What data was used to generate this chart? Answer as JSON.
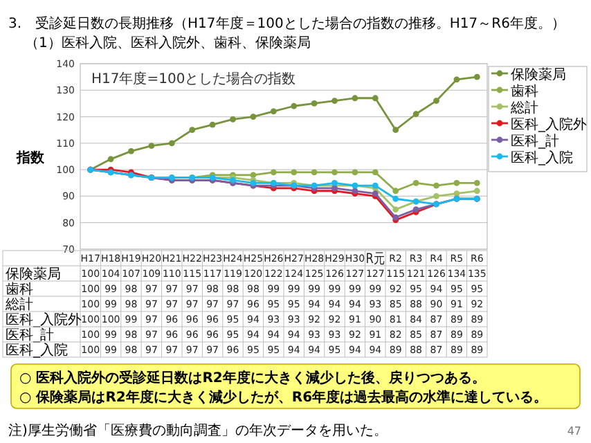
{
  "chart_data": {
    "type": "line",
    "title": "3.　受診延日数の長期推移（H17年度＝100とした場合の指数の推移。H17～R6年度。）",
    "subtitle": "（1）医科入院、医科入院外、歯科、保険薬局",
    "ylabel": "指数",
    "annotations": [
      "H17年度=100とした場合の指数",
      "○ 医科入院外の受診延日数はR2年度に大きく減少した後、戻りつつある。",
      "○ 保険薬局はR2年度に大きく減少したが、R6年度は過去最高の水準に達している。",
      "注)厚生労働省「医療費の動向調査」の年次データを用いた。",
      "47"
    ],
    "categories": [
      "H17",
      "H18",
      "H19",
      "H20",
      "H21",
      "H22",
      "H23",
      "H24",
      "H25",
      "H26",
      "H27",
      "H28",
      "H29",
      "H30",
      "R元",
      "R2",
      "R3",
      "R4",
      "R5",
      "R6"
    ],
    "series": [
      {
        "name": "保険薬局",
        "color": "#77933c",
        "values": [
          100,
          104,
          107,
          109,
          110,
          115,
          117,
          119,
          120,
          122,
          124,
          125,
          126,
          127,
          127,
          115,
          121,
          126,
          134,
          135
        ]
      },
      {
        "name": "歯科",
        "color": "#8fab4a",
        "values": [
          100,
          99,
          98,
          97,
          97,
          97,
          98,
          98,
          98,
          99,
          99,
          99,
          99,
          99,
          99,
          92,
          95,
          94,
          95,
          95
        ]
      },
      {
        "name": "総計",
        "color": "#a5c165",
        "values": [
          100,
          99,
          98,
          97,
          97,
          97,
          97,
          97,
          96,
          95,
          95,
          94,
          94,
          94,
          93,
          85,
          88,
          90,
          91,
          92
        ]
      },
      {
        "name": "医科_入院外",
        "color": "#e01a22",
        "values": [
          100,
          100,
          99,
          97,
          96,
          96,
          96,
          95,
          94,
          93,
          93,
          92,
          92,
          91,
          90,
          81,
          84,
          87,
          89,
          89
        ]
      },
      {
        "name": "医科_計",
        "color": "#7a5fa5",
        "values": [
          100,
          99,
          98,
          97,
          96,
          96,
          96,
          95,
          94,
          94,
          94,
          93,
          93,
          92,
          91,
          82,
          85,
          87,
          89,
          89
        ]
      },
      {
        "name": "医科_入院",
        "color": "#1cb8ee",
        "values": [
          100,
          99,
          98,
          97,
          97,
          97,
          97,
          96,
          95,
          95,
          94,
          94,
          95,
          94,
          94,
          89,
          88,
          87,
          89,
          89
        ]
      }
    ],
    "ylim": [
      70,
      140
    ],
    "yticks": [
      70,
      80,
      90,
      100,
      110,
      120,
      130,
      140
    ],
    "grid": "y",
    "legend": "right",
    "marker": "circle",
    "data_labels": true
  }
}
